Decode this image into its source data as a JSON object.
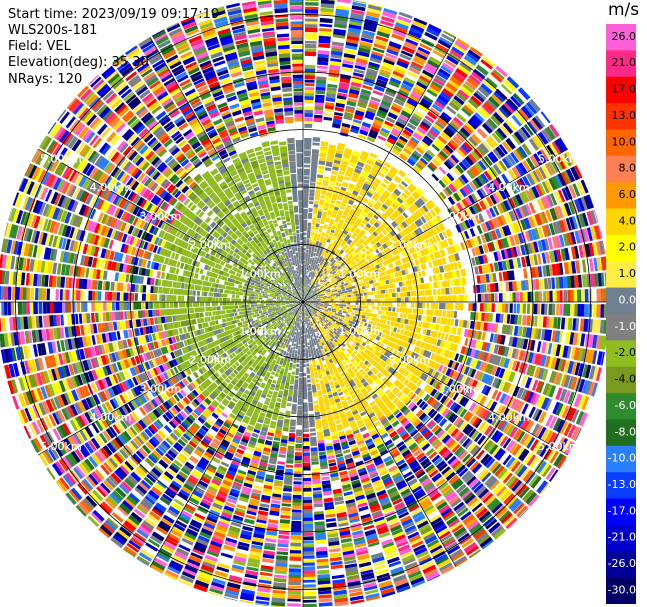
{
  "meta": {
    "start_time": "Start time: 2023/09/19 09:17:19",
    "instrument": "WLS200s-181",
    "field": "Field: VEL",
    "elevation": "Elevation(deg): 35.30",
    "nrays": "NRays: 120"
  },
  "chart_data": {
    "type": "heatmap",
    "projection": "polar (PPI scan)",
    "field": "VEL",
    "units": "m/s",
    "elevation_deg": 35.3,
    "nrays": 120,
    "range_rings_km": [
      1,
      2,
      3,
      4,
      5
    ],
    "range_ring_labels": [
      "1.00km",
      "2.00km",
      "3.00km",
      "4.00km",
      "5.00km"
    ],
    "colorbar": {
      "label": "m/s",
      "ticks": [
        "26.0",
        "21.0",
        "17.0",
        "13.0",
        "10.0",
        "8.0",
        "6.0",
        "4.0",
        "2.0",
        "1.0",
        "0.0",
        "-1.0",
        "-2.0",
        "-4.0",
        "-6.0",
        "-8.0",
        "-10.0",
        "-13.0",
        "-17.0",
        "-21.0",
        "-26.0",
        "-30.0"
      ],
      "colors": [
        "#ff5fd7",
        "#ff2a88",
        "#ff0000",
        "#ff3300",
        "#ff6600",
        "#ff8055",
        "#ff9900",
        "#ffd700",
        "#ffff00",
        "#ffec44",
        "#708090",
        "#808080",
        "#8fbc1f",
        "#7a9a1f",
        "#2e8b2e",
        "#1f6f1f",
        "#2a7fff",
        "#0a3dff",
        "#0000ff",
        "#0000cc",
        "#000099",
        "#000066"
      ]
    },
    "structure": [
      {
        "range_km": [
          0.0,
          1.0
        ],
        "dominant": "gray near-zero with green/yellow patches"
      },
      {
        "range_km": [
          1.0,
          2.0
        ],
        "dominant": "green (approaching) west / yellow (receding) east / gray north & south"
      },
      {
        "range_km": [
          2.0,
          3.0
        ],
        "dominant": "green west, yellow east-southeast, gray band"
      },
      {
        "range_km": [
          3.0,
          5.3
        ],
        "dominant": "noisy multicolor (low SNR)"
      }
    ],
    "grid": true
  }
}
